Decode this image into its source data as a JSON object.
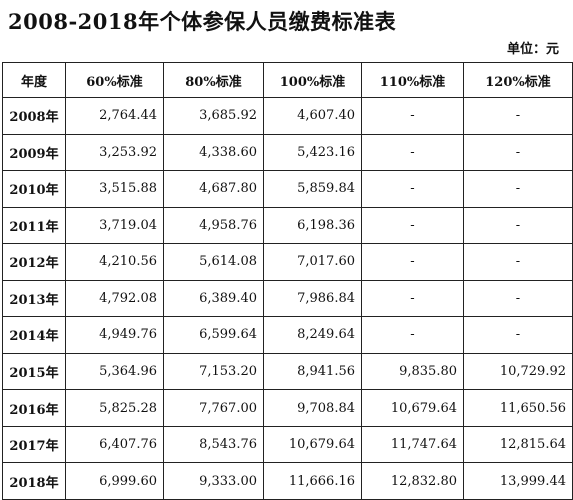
{
  "title": "2008-2018年个体参保人员缴费标准表",
  "unit_label": "单位：元",
  "table": {
    "headers": [
      "年度",
      "60%标准",
      "80%标准",
      "100%标准",
      "110%标准",
      "120%标准"
    ],
    "rows": [
      [
        "2008年",
        "2,764.44",
        "3,685.92",
        "4,607.40",
        "-",
        "-"
      ],
      [
        "2009年",
        "3,253.92",
        "4,338.60",
        "5,423.16",
        "-",
        "-"
      ],
      [
        "2010年",
        "3,515.88",
        "4,687.80",
        "5,859.84",
        "-",
        "-"
      ],
      [
        "2011年",
        "3,719.04",
        "4,958.76",
        "6,198.36",
        "-",
        "-"
      ],
      [
        "2012年",
        "4,210.56",
        "5,614.08",
        "7,017.60",
        "-",
        "-"
      ],
      [
        "2013年",
        "4,792.08",
        "6,389.40",
        "7,986.84",
        "-",
        "-"
      ],
      [
        "2014年",
        "4,949.76",
        "6,599.64",
        "8,249.64",
        "-",
        "-"
      ],
      [
        "2015年",
        "5,364.96",
        "7,153.20",
        "8,941.56",
        "9,835.80",
        "10,729.92"
      ],
      [
        "2016年",
        "5,825.28",
        "7,767.00",
        "9,708.84",
        "10,679.64",
        "11,650.56"
      ],
      [
        "2017年",
        "6,407.76",
        "8,543.76",
        "10,679.64",
        "11,747.64",
        "12,815.64"
      ],
      [
        "2018年",
        "6,999.60",
        "9,333.00",
        "11,666.16",
        "12,832.80",
        "13,999.44"
      ]
    ]
  }
}
